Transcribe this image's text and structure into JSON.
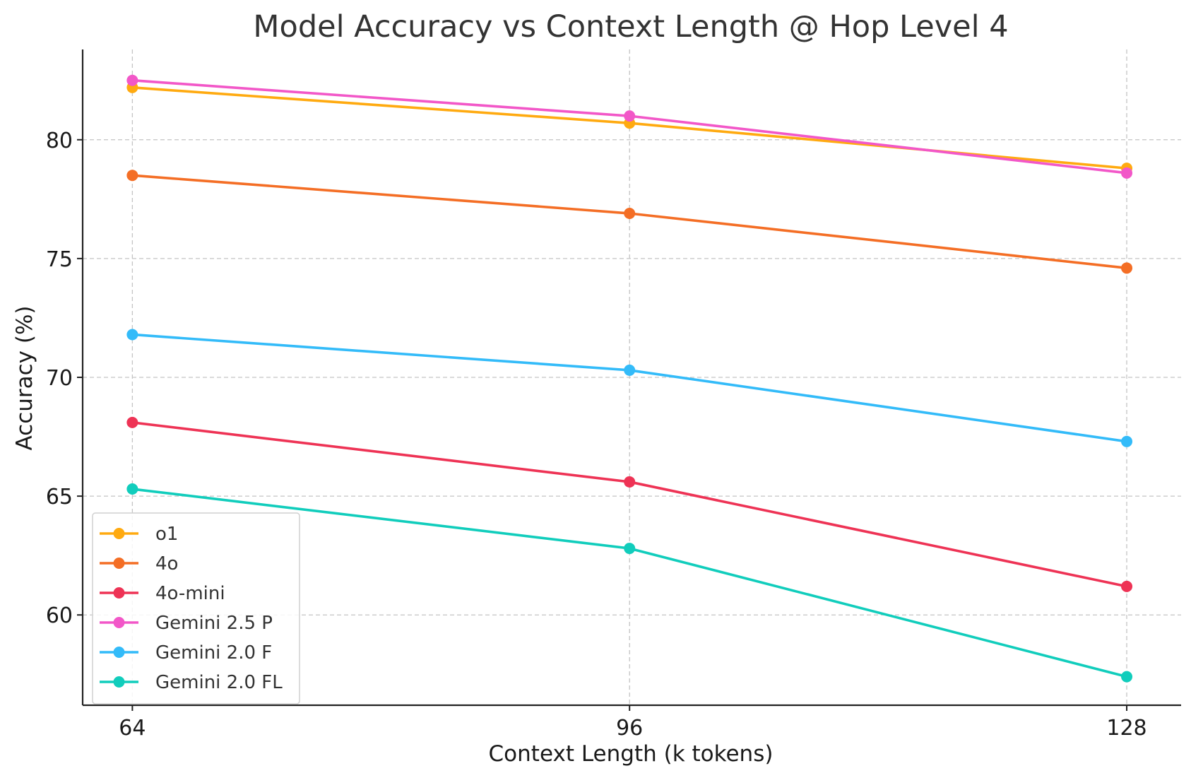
{
  "chart_data": {
    "type": "line",
    "title": "Model Accuracy vs Context Length @ Hop Level 4",
    "xlabel": "Context Length (k tokens)",
    "ylabel": "Accuracy (%)",
    "x": [
      64,
      96,
      128
    ],
    "x_tick_labels": [
      "64",
      "96",
      "128"
    ],
    "y_ticks": [
      60,
      65,
      70,
      75,
      80
    ],
    "y_tick_labels": [
      "60",
      "65",
      "70",
      "75",
      "80"
    ],
    "xlim": [
      60.8,
      131.5
    ],
    "ylim": [
      56.2,
      83.8
    ],
    "grid": true,
    "legend_position": "bottom-left",
    "series": [
      {
        "name": "o1",
        "color": "#FFAA10",
        "values": [
          82.2,
          80.7,
          78.8
        ]
      },
      {
        "name": "4o",
        "color": "#F46E25",
        "values": [
          78.5,
          76.9,
          74.6
        ]
      },
      {
        "name": "4o-mini",
        "color": "#EE3355",
        "values": [
          68.1,
          65.6,
          61.2
        ]
      },
      {
        "name": "Gemini 2.5 P",
        "color": "#F257C8",
        "values": [
          82.5,
          81.0,
          78.6
        ]
      },
      {
        "name": "Gemini 2.0 F",
        "color": "#33BBF9",
        "values": [
          71.8,
          70.3,
          67.3
        ]
      },
      {
        "name": "Gemini 2.0 FL",
        "color": "#11CDBC",
        "values": [
          65.3,
          62.8,
          57.4
        ]
      }
    ]
  }
}
